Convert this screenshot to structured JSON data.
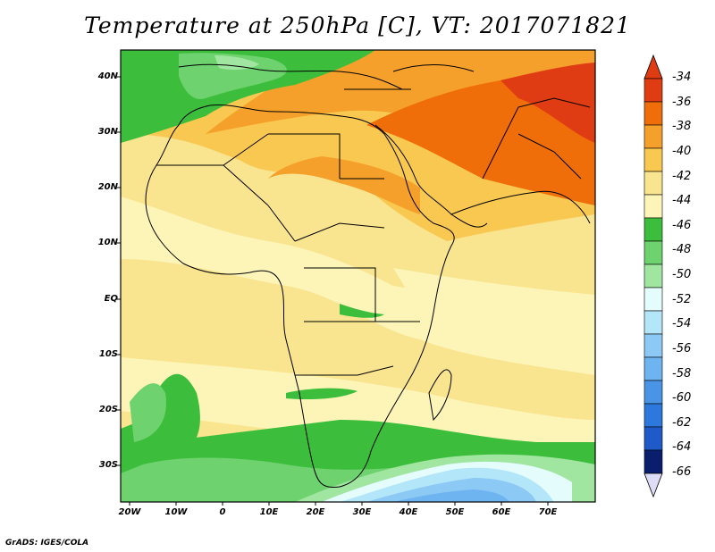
{
  "title": "Temperature at 250hPa [C], VT: 2017071821",
  "footer": "GrADS: IGES/COLA",
  "lat_labels": [
    "40N",
    "30N",
    "20N",
    "10N",
    "EQ",
    "10S",
    "20S",
    "30S"
  ],
  "lon_labels": [
    "20W",
    "10W",
    "0",
    "10E",
    "20E",
    "30E",
    "40E",
    "50E",
    "60E",
    "70E"
  ],
  "colorbar": {
    "labels": [
      "-34",
      "-36",
      "-38",
      "-40",
      "-42",
      "-44",
      "-46",
      "-48",
      "-50",
      "-52",
      "-54",
      "-56",
      "-58",
      "-60",
      "-62",
      "-64",
      "-66"
    ],
    "colors": [
      "#e03c14",
      "#f06e0a",
      "#f5a02a",
      "#f8c850",
      "#f9e48f",
      "#fdf5b8",
      "#3cbe3c",
      "#6ed26e",
      "#a0e6a0",
      "#e4fcfc",
      "#b4e6fa",
      "#8ccaf5",
      "#6eb4f0",
      "#4a94e6",
      "#2c78dc",
      "#1e5ac8",
      "#0a1e6e"
    ],
    "top_triangle_color": "#e03c14",
    "bottom_triangle_color": "#ddddf5"
  },
  "map_extent": {
    "lon": [
      -20,
      80
    ],
    "lat": [
      -37,
      45
    ]
  }
}
